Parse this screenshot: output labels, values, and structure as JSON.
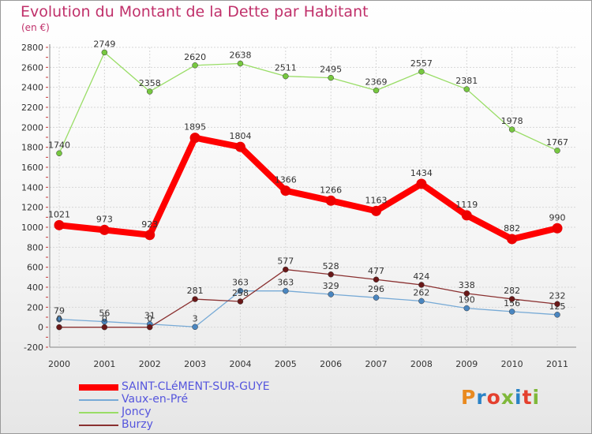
{
  "title": "Evolution du Montant de la Dette par Habitant",
  "subtitle": "(en €)",
  "logo": {
    "text": "Proxiti",
    "colors": [
      "#e98a1f",
      "#2a82c6",
      "#e4402e",
      "#7fb83a",
      "#2a82c6",
      "#e4402e",
      "#7fb83a"
    ]
  },
  "chart_data": {
    "type": "line",
    "title": "Evolution du Montant de la Dette par Habitant",
    "subtitle": "(en €)",
    "xlabel": "",
    "ylabel": "",
    "x": [
      "2000",
      "2001",
      "2002",
      "2003",
      "2004",
      "2005",
      "2006",
      "2007",
      "2008",
      "2009",
      "2010",
      "2011"
    ],
    "ylim": [
      -200,
      2800
    ],
    "yticks": [
      -200,
      0,
      200,
      400,
      600,
      800,
      1000,
      1200,
      1400,
      1600,
      1800,
      2000,
      2200,
      2400,
      2600,
      2800
    ],
    "grid": true,
    "legend": "bottom-left",
    "series": [
      {
        "name": "Joncy",
        "color": "#99dd66",
        "marker": "#77c840",
        "width": 1.3,
        "marker_r": 3.5,
        "values": [
          1740,
          2749,
          2358,
          2620,
          2638,
          2511,
          2495,
          2369,
          2557,
          2381,
          1978,
          1767
        ],
        "labels": [
          "1740",
          "2749",
          "2358",
          "2620",
          "2638",
          "2511",
          "2495",
          "2369",
          "2557",
          "2381",
          "1978",
          "1767"
        ]
      },
      {
        "name": "Vaux-en-Pré",
        "color": "#77aad6",
        "marker": "#4a86c0",
        "width": 1.3,
        "marker_r": 3.5,
        "values": [
          79,
          56,
          31,
          3,
          363,
          363,
          329,
          296,
          262,
          190,
          156,
          125
        ],
        "labels": [
          "79",
          "56",
          "31",
          "3",
          "363",
          "363",
          "329",
          "296",
          "262",
          "190",
          "156",
          "125"
        ]
      },
      {
        "name": "Burzy",
        "color": "#8a3030",
        "marker": "#6a1818",
        "width": 1.3,
        "marker_r": 3.5,
        "values": [
          0,
          0,
          0,
          281,
          258,
          577,
          528,
          477,
          424,
          338,
          282,
          232
        ],
        "labels": [
          "0",
          "0",
          "0",
          "281",
          "258",
          "577",
          "528",
          "477",
          "424",
          "338",
          "282",
          "232"
        ]
      },
      {
        "name": "SAINT-CLéMENT-SUR-GUYE",
        "color": "#ff0000",
        "marker": "#ee0000",
        "width": 8,
        "marker_r": 6.5,
        "values": [
          1021,
          973,
          923,
          1895,
          1804,
          1366,
          1266,
          1163,
          1434,
          1119,
          882,
          990
        ],
        "labels": [
          "1021",
          "973",
          "923",
          "1895",
          "1804",
          "1366",
          "1266",
          "1163",
          "1434",
          "1119",
          "882",
          "990"
        ]
      }
    ],
    "legend_entries": [
      {
        "name": "SAINT-CLéMENT-SUR-GUYE",
        "color": "#ff0000",
        "thickness": 8
      },
      {
        "name": "Vaux-en-Pré",
        "color": "#77aad6",
        "thickness": 2
      },
      {
        "name": "Joncy",
        "color": "#99dd66",
        "thickness": 2
      },
      {
        "name": "Burzy",
        "color": "#8a3030",
        "thickness": 2
      }
    ]
  }
}
